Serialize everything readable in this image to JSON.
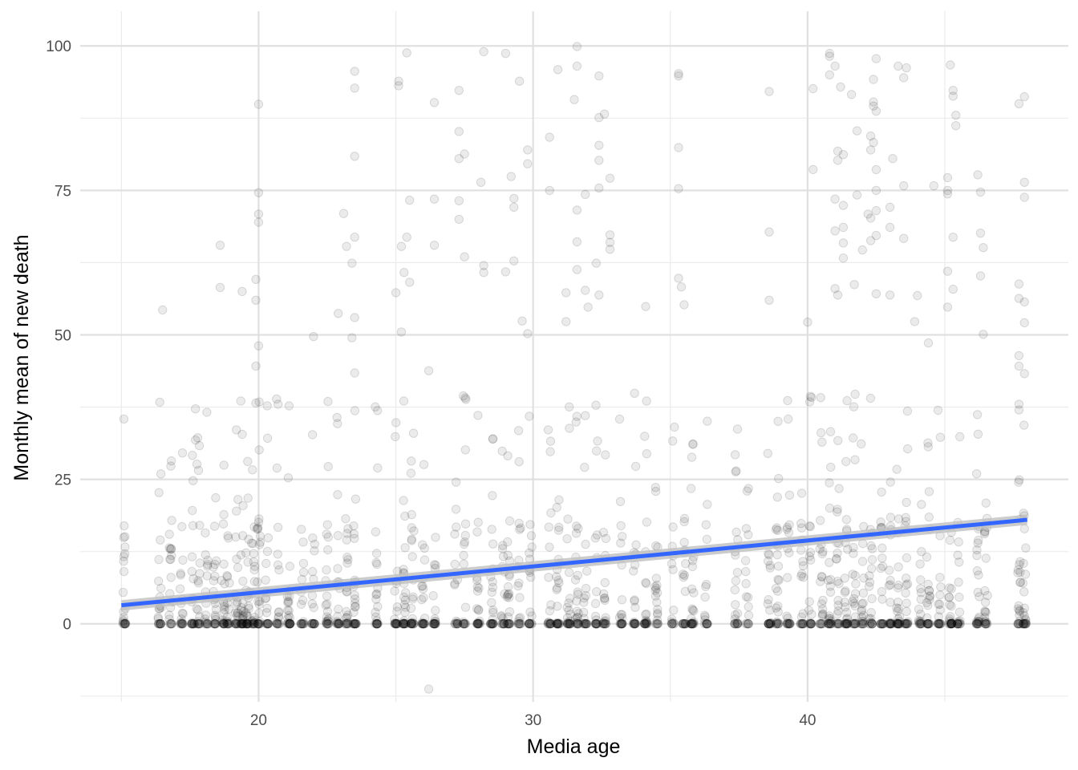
{
  "chart_data": {
    "type": "scatter",
    "title": "",
    "xlabel": "Media age",
    "ylabel": "Monthly mean of new death",
    "xlim": [
      13.5,
      49.5
    ],
    "ylim": [
      -13.5,
      106
    ],
    "x_ticks": [
      20,
      30,
      40
    ],
    "x_minor_ticks": [
      15,
      25,
      35,
      45
    ],
    "y_ticks": [
      0,
      25,
      50,
      75,
      100
    ],
    "y_minor_ticks": [
      -12.5,
      12.5,
      37.5,
      62.5,
      87.5
    ],
    "grid": true,
    "legend": "none",
    "point_color": "#000000",
    "point_alpha": 0.08,
    "trend_line": {
      "x": [
        15,
        48
      ],
      "y": [
        3.2,
        18
      ],
      "color": "#3366ff",
      "se_band": 0.9,
      "se_color": "#bfbfbf"
    },
    "x_groups": [
      15.1,
      16.4,
      16.8,
      17.2,
      17.6,
      17.8,
      18.1,
      18.4,
      18.7,
      18.9,
      19.2,
      19.4,
      19.6,
      19.8,
      20.0,
      20.3,
      20.7,
      21.1,
      21.6,
      22.0,
      22.5,
      22.9,
      23.2,
      23.5,
      24.3,
      25.0,
      25.3,
      25.6,
      26.0,
      26.4,
      27.2,
      27.5,
      28.0,
      28.5,
      28.9,
      29.1,
      29.5,
      29.9,
      30.6,
      30.9,
      31.3,
      31.6,
      31.9,
      32.3,
      32.6,
      33.2,
      33.7,
      34.1,
      34.5,
      35.1,
      35.5,
      35.8,
      36.3,
      37.4,
      37.8,
      38.6,
      38.9,
      39.3,
      39.8,
      40.1,
      40.5,
      40.8,
      41.1,
      41.4,
      41.7,
      42.0,
      42.3,
      42.7,
      43.0,
      43.3,
      43.6,
      44.1,
      44.4,
      44.8,
      45.2,
      45.5,
      46.2,
      46.5,
      47.7,
      47.9
    ],
    "high_points": [
      [
        16.5,
        54.3
      ],
      [
        17.7,
        37.2
      ],
      [
        17.7,
        31.8
      ],
      [
        18.6,
        65.5
      ],
      [
        18.6,
        58.2
      ],
      [
        19.4,
        57.5
      ],
      [
        19.6,
        28.1
      ],
      [
        20.0,
        89.9
      ],
      [
        20.0,
        74.6
      ],
      [
        20.0,
        70.9
      ],
      [
        20.0,
        69.5
      ],
      [
        19.9,
        59.6
      ],
      [
        19.9,
        56.0
      ],
      [
        20.0,
        48.1
      ],
      [
        19.9,
        44.6
      ],
      [
        19.9,
        38.2
      ],
      [
        22.0,
        49.7
      ],
      [
        23.1,
        71.0
      ],
      [
        23.2,
        65.3
      ],
      [
        23.5,
        95.6
      ],
      [
        23.5,
        92.7
      ],
      [
        23.5,
        80.9
      ],
      [
        23.5,
        66.9
      ],
      [
        23.4,
        62.4
      ],
      [
        23.5,
        53.0
      ],
      [
        23.4,
        49.5
      ],
      [
        23.5,
        43.4
      ],
      [
        22.9,
        53.7
      ],
      [
        25.1,
        93.9
      ],
      [
        25.1,
        93.1
      ],
      [
        25.4,
        98.8
      ],
      [
        25.5,
        73.3
      ],
      [
        25.4,
        66.9
      ],
      [
        25.2,
        65.3
      ],
      [
        25.3,
        60.8
      ],
      [
        25.5,
        59.1
      ],
      [
        25.0,
        57.3
      ],
      [
        25.2,
        50.5
      ],
      [
        26.4,
        90.2
      ],
      [
        26.4,
        73.5
      ],
      [
        26.4,
        65.5
      ],
      [
        26.2,
        43.8
      ],
      [
        27.3,
        92.3
      ],
      [
        27.3,
        85.2
      ],
      [
        27.3,
        80.5
      ],
      [
        27.5,
        81.3
      ],
      [
        27.3,
        73.2
      ],
      [
        27.3,
        70.0
      ],
      [
        27.5,
        63.5
      ],
      [
        28.2,
        99.0
      ],
      [
        28.1,
        76.4
      ],
      [
        28.2,
        62.0
      ],
      [
        28.2,
        60.8
      ],
      [
        29.0,
        98.7
      ],
      [
        29.2,
        77.4
      ],
      [
        29.5,
        93.9
      ],
      [
        29.3,
        73.6
      ],
      [
        29.3,
        72.1
      ],
      [
        29.3,
        62.8
      ],
      [
        29.0,
        60.9
      ],
      [
        29.8,
        82.0
      ],
      [
        29.8,
        79.6
      ],
      [
        29.6,
        52.4
      ],
      [
        29.8,
        50.2
      ],
      [
        30.6,
        84.2
      ],
      [
        30.6,
        75.0
      ],
      [
        30.9,
        95.9
      ],
      [
        31.2,
        57.3
      ],
      [
        31.2,
        52.3
      ],
      [
        31.6,
        99.9
      ],
      [
        31.6,
        96.5
      ],
      [
        31.5,
        90.7
      ],
      [
        31.6,
        71.6
      ],
      [
        31.6,
        66.1
      ],
      [
        31.6,
        61.3
      ],
      [
        31.9,
        74.3
      ],
      [
        31.9,
        57.7
      ],
      [
        32.3,
        62.4
      ],
      [
        32.4,
        94.8
      ],
      [
        32.4,
        87.6
      ],
      [
        32.4,
        82.8
      ],
      [
        32.4,
        80.2
      ],
      [
        32.4,
        75.4
      ],
      [
        32.6,
        88.2
      ],
      [
        32.8,
        77.1
      ],
      [
        32.8,
        67.3
      ],
      [
        32.8,
        66.0
      ],
      [
        32.8,
        64.8
      ],
      [
        32.4,
        56.9
      ],
      [
        32.0,
        54.8
      ],
      [
        34.1,
        54.9
      ],
      [
        35.3,
        95.2
      ],
      [
        35.3,
        94.8
      ],
      [
        35.3,
        82.4
      ],
      [
        35.3,
        75.3
      ],
      [
        35.3,
        59.8
      ],
      [
        35.4,
        58.3
      ],
      [
        35.5,
        55.2
      ],
      [
        38.6,
        92.1
      ],
      [
        38.6,
        67.8
      ],
      [
        38.6,
        56.0
      ],
      [
        40.2,
        92.6
      ],
      [
        40.2,
        78.6
      ],
      [
        40.0,
        52.2
      ],
      [
        40.8,
        98.7
      ],
      [
        40.8,
        98.2
      ],
      [
        40.8,
        95.0
      ],
      [
        41.0,
        96.5
      ],
      [
        41.2,
        92.9
      ],
      [
        41.1,
        81.8
      ],
      [
        41.1,
        80.2
      ],
      [
        41.3,
        81.2
      ],
      [
        41.0,
        73.5
      ],
      [
        41.3,
        72.4
      ],
      [
        41.3,
        68.6
      ],
      [
        41.0,
        68.0
      ],
      [
        41.3,
        65.9
      ],
      [
        41.3,
        63.3
      ],
      [
        41.0,
        58.0
      ],
      [
        41.1,
        56.9
      ],
      [
        41.6,
        91.6
      ],
      [
        41.7,
        58.7
      ],
      [
        41.8,
        85.3
      ],
      [
        41.8,
        74.2
      ],
      [
        42.0,
        64.7
      ],
      [
        42.4,
        94.2
      ],
      [
        42.5,
        97.8
      ],
      [
        42.4,
        90.3
      ],
      [
        42.4,
        89.6
      ],
      [
        42.4,
        83.3
      ],
      [
        42.5,
        88.7
      ],
      [
        42.3,
        84.4
      ],
      [
        42.3,
        82.0
      ],
      [
        42.5,
        78.6
      ],
      [
        42.5,
        75.0
      ],
      [
        42.5,
        71.5
      ],
      [
        42.3,
        70.2
      ],
      [
        42.5,
        67.2
      ],
      [
        42.3,
        66.3
      ],
      [
        42.5,
        57.1
      ],
      [
        42.2,
        70.9
      ],
      [
        43.0,
        72.1
      ],
      [
        43.0,
        68.6
      ],
      [
        43.0,
        56.9
      ],
      [
        43.3,
        96.5
      ],
      [
        43.5,
        94.5
      ],
      [
        43.6,
        96.2
      ],
      [
        43.5,
        75.8
      ],
      [
        43.5,
        66.7
      ],
      [
        43.1,
        80.5
      ],
      [
        45.2,
        96.7
      ],
      [
        45.3,
        92.3
      ],
      [
        45.3,
        91.3
      ],
      [
        45.1,
        77.2
      ],
      [
        45.1,
        75.0
      ],
      [
        45.1,
        74.4
      ],
      [
        45.3,
        66.9
      ],
      [
        45.3,
        57.9
      ],
      [
        45.1,
        54.8
      ],
      [
        45.1,
        61.0
      ],
      [
        45.4,
        86.2
      ],
      [
        45.4,
        88.0
      ],
      [
        46.2,
        77.7
      ],
      [
        46.3,
        74.7
      ],
      [
        46.4,
        65.1
      ],
      [
        46.3,
        67.6
      ],
      [
        46.3,
        60.2
      ],
      [
        47.7,
        90.0
      ],
      [
        47.9,
        91.2
      ],
      [
        47.9,
        76.4
      ],
      [
        47.9,
        73.8
      ],
      [
        47.7,
        58.8
      ],
      [
        47.7,
        56.3
      ],
      [
        47.9,
        55.7
      ],
      [
        47.9,
        52.1
      ],
      [
        47.7,
        46.4
      ],
      [
        47.7,
        44.6
      ],
      [
        47.9,
        43.3
      ],
      [
        47.7,
        38.0
      ],
      [
        47.7,
        37.0
      ],
      [
        46.4,
        50.1
      ],
      [
        44.6,
        75.8
      ],
      [
        44.4,
        48.6
      ],
      [
        43.9,
        52.3
      ],
      [
        44.0,
        56.8
      ],
      [
        26.2,
        -11.3
      ]
    ]
  }
}
